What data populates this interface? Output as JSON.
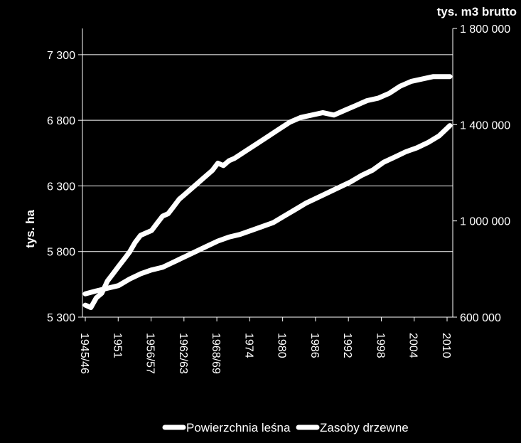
{
  "chart_data": {
    "type": "line",
    "title": "",
    "ylabel_left": "tys. ha",
    "ylabel_right": "tys. m3 brutto",
    "y_left": {
      "ticks": [
        5300,
        5800,
        6300,
        6800,
        7300
      ],
      "tick_labels": [
        "5 300",
        "5 800",
        "6 300",
        "6 800",
        "7 300"
      ],
      "ylim": [
        5300,
        7500
      ]
    },
    "y_right": {
      "ticks": [
        600000,
        1000000,
        1400000,
        1800000
      ],
      "tick_labels": [
        "600 000",
        "1 000 000",
        "1 400 000",
        "1 800 000"
      ],
      "ylim": [
        600000,
        1800000
      ]
    },
    "x_tick_labels": [
      "1945/46",
      "1951",
      "1956/57",
      "1962/63",
      "1968/69",
      "1974",
      "1980",
      "1986",
      "1992",
      "1998",
      "2004",
      "2010"
    ],
    "grid": true,
    "legend_position": "bottom",
    "series": [
      {
        "name": "Powierzchnia leśna",
        "axis": "left",
        "color": "#ffffff",
        "x": [
          1945,
          1947,
          1949,
          1951,
          1953,
          1955,
          1957,
          1959,
          1961,
          1963,
          1965,
          1967,
          1969,
          1971,
          1973,
          1975,
          1977,
          1979,
          1981,
          1983,
          1985,
          1987,
          1989,
          1991,
          1993,
          1995,
          1997,
          1999,
          2001,
          2003,
          2005,
          2007,
          2009,
          2011
        ],
        "values": [
          5478,
          5500,
          5520,
          5540,
          5590,
          5630,
          5660,
          5680,
          5720,
          5760,
          5800,
          5840,
          5880,
          5910,
          5930,
          5960,
          5990,
          6020,
          6070,
          6120,
          6170,
          6210,
          6250,
          6290,
          6330,
          6380,
          6420,
          6480,
          6520,
          6560,
          6590,
          6630,
          6680,
          6760
        ]
      },
      {
        "name": "Zasoby drzewne",
        "axis": "right",
        "color": "#ffffff",
        "x": [
          1945,
          1946,
          1947,
          1948,
          1949,
          1950,
          1951,
          1952,
          1953,
          1954,
          1955,
          1956,
          1957,
          1958,
          1959,
          1960,
          1961,
          1962,
          1963,
          1964,
          1966,
          1968,
          1969,
          1970,
          1971,
          1972,
          1974,
          1976,
          1978,
          1980,
          1982,
          1984,
          1986,
          1988,
          1990,
          1992,
          1994,
          1996,
          1998,
          2000,
          2002,
          2004,
          2006,
          2008,
          2010,
          2011
        ],
        "values": [
          650000,
          640000,
          680000,
          700000,
          750000,
          780000,
          810000,
          840000,
          870000,
          910000,
          940000,
          950000,
          960000,
          990000,
          1020000,
          1030000,
          1060000,
          1090000,
          1110000,
          1130000,
          1170000,
          1210000,
          1240000,
          1230000,
          1250000,
          1260000,
          1290000,
          1320000,
          1350000,
          1380000,
          1410000,
          1430000,
          1440000,
          1450000,
          1440000,
          1460000,
          1480000,
          1500000,
          1510000,
          1530000,
          1560000,
          1580000,
          1590000,
          1600000,
          1600000,
          1600000
        ]
      }
    ]
  }
}
